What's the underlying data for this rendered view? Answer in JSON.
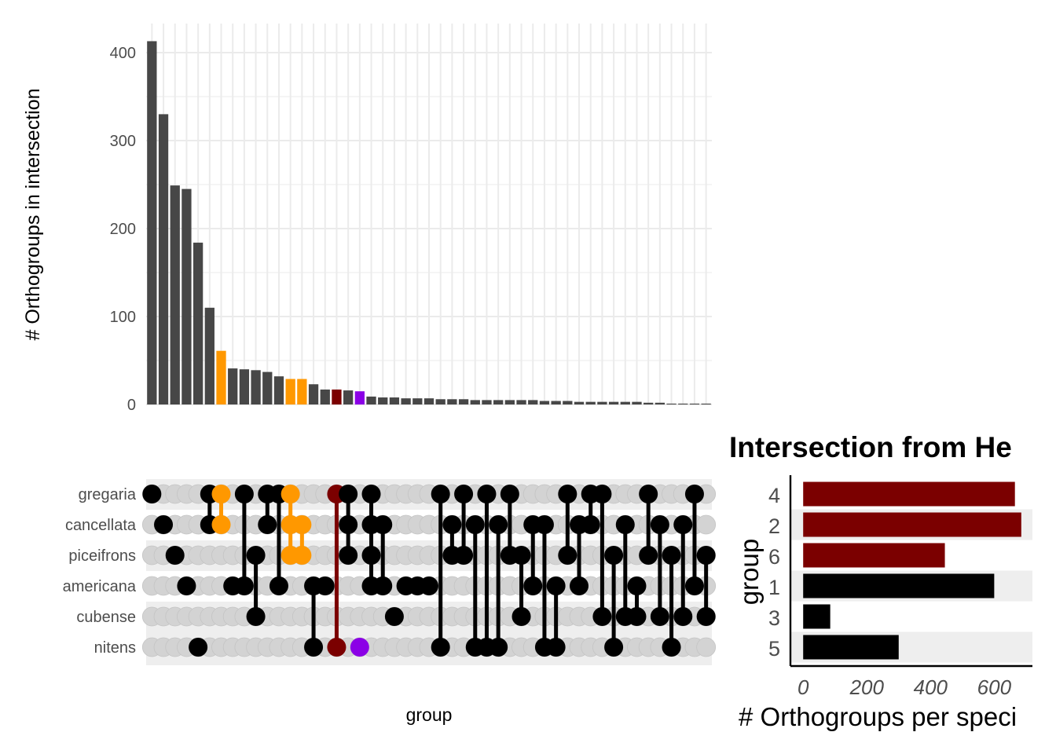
{
  "chart_data": [
    {
      "type": "bar",
      "panel": "intersection-size",
      "ylabel": "# Orthogroups in intersection",
      "xlabel": "",
      "ylim": [
        0,
        420
      ],
      "yticks": [
        0,
        100,
        200,
        300,
        400
      ],
      "values": [
        413,
        330,
        249,
        245,
        184,
        110,
        61,
        41,
        40,
        39,
        37,
        32,
        29,
        29,
        23,
        17,
        17,
        16,
        15,
        9,
        8,
        8,
        7,
        7,
        7,
        6,
        6,
        6,
        5,
        5,
        5,
        5,
        5,
        5,
        4,
        4,
        4,
        3,
        3,
        3,
        3,
        3,
        3,
        2,
        2,
        1,
        1,
        1,
        1
      ],
      "highlight_colors": {
        "6": "#ff9800",
        "12": "#ff9800",
        "13": "#ff9800",
        "16": "#7b0000",
        "18": "#8b00e6"
      },
      "default_color": "#474747"
    },
    {
      "type": "matrix",
      "panel": "intersection-matrix",
      "xlabel": "group",
      "sets": [
        "gregaria",
        "cancellata",
        "piceifrons",
        "americana",
        "cubense",
        "nitens"
      ],
      "combinations": [
        [
          0
        ],
        [
          1
        ],
        [
          2
        ],
        [
          3
        ],
        [
          5
        ],
        [
          0,
          1
        ],
        [
          0,
          1
        ],
        [
          3
        ],
        [
          0,
          3
        ],
        [
          2,
          4
        ],
        [
          0,
          1
        ],
        [
          0,
          3
        ],
        [
          0,
          1,
          2
        ],
        [
          1,
          2
        ],
        [
          3,
          5
        ],
        [
          3
        ],
        [
          0,
          5
        ],
        [
          0,
          1,
          2
        ],
        [
          5
        ],
        [
          0,
          1,
          2,
          3
        ],
        [
          1,
          3
        ],
        [
          4
        ],
        [
          3
        ],
        [
          3
        ],
        [
          3
        ],
        [
          0,
          5
        ],
        [
          1,
          2
        ],
        [
          0,
          2
        ],
        [
          1,
          5
        ],
        [
          0,
          5
        ],
        [
          1,
          5
        ],
        [
          0,
          2
        ],
        [
          2,
          4
        ],
        [
          1,
          3
        ],
        [
          1,
          5
        ],
        [
          3,
          5
        ],
        [
          0,
          2
        ],
        [
          1,
          3
        ],
        [
          0,
          1
        ],
        [
          0,
          4
        ],
        [
          2,
          5
        ],
        [
          1,
          4
        ],
        [
          3,
          4
        ],
        [
          0,
          2
        ],
        [
          1,
          4
        ],
        [
          2,
          5
        ],
        [
          1,
          4
        ],
        [
          0,
          3
        ],
        [
          2,
          4
        ]
      ],
      "highlight_colors": {
        "6": "#ff9800",
        "12": "#ff9800",
        "13": "#ff9800",
        "16": "#7b0000",
        "18": "#8b00e6"
      },
      "default_color": "#000000"
    },
    {
      "type": "bar",
      "orientation": "horizontal",
      "panel": "orthogroups-per-species",
      "title": "Intersection from He",
      "categories": [
        "4",
        "2",
        "6",
        "1",
        "3",
        "5"
      ],
      "values": [
        665,
        685,
        445,
        600,
        85,
        300
      ],
      "colors": [
        "#7b0000",
        "#7b0000",
        "#7b0000",
        "#000000",
        "#000000",
        "#000000"
      ],
      "xlabel": "# Orthogroups per speci",
      "ylabel": "group",
      "xlim": [
        -40,
        720
      ],
      "xticks": [
        0,
        200,
        400,
        600
      ]
    }
  ],
  "colors": {
    "grid": "#ebebeb",
    "dot_inactive": "#d3d3d3",
    "stripe": "#eeeeee"
  }
}
